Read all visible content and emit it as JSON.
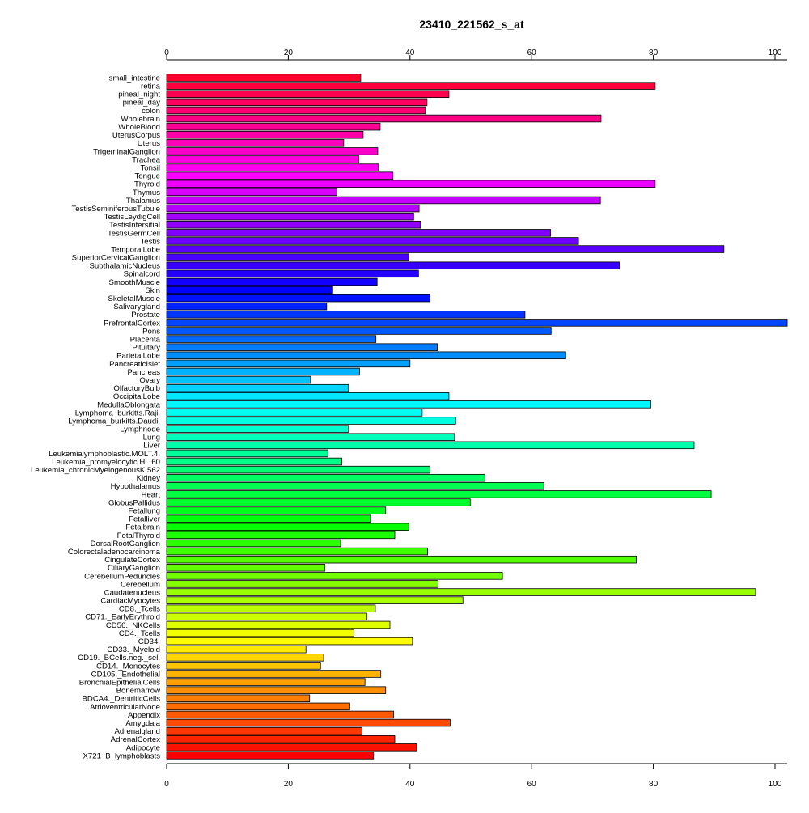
{
  "chart_data": {
    "type": "bar",
    "orientation": "horizontal",
    "title": "23410_221562_s_at",
    "xlabel": "",
    "ylabel": "",
    "xlim": [
      0,
      102
    ],
    "x_ticks": [
      0,
      20,
      40,
      60,
      80,
      100
    ],
    "grid": false,
    "legend": "none",
    "color_scheme": "rainbow",
    "categories": [
      "small_intestine",
      "retina",
      "pineal_night",
      "pineal_day",
      "colon",
      "Wholebrain",
      "WholeBlood",
      "UterusCorpus",
      "Uterus",
      "TrigeminalGanglion",
      "Trachea",
      "Tonsil",
      "Tongue",
      "Thyroid",
      "Thymus",
      "Thalamus",
      "TestisSeminiferousTubule",
      "TestisLeydigCell",
      "TestisIntersitial",
      "TestisGermCell",
      "Testis",
      "TemporalLobe",
      "SuperiorCervicalGanglion",
      "SubthalamicNucleus",
      "Spinalcord",
      "SmoothMuscle",
      "Skin",
      "SkeletalMuscle",
      "Salivarygland",
      "Prostate",
      "PrefrontalCortex",
      "Pons",
      "Placenta",
      "Pituitary",
      "ParietalLobe",
      "PancreaticIslet",
      "Pancreas",
      "Ovary",
      "OlfactoryBulb",
      "OccipitalLobe",
      "MedullaOblongata",
      "Lymphoma_burkitts.Raji.",
      "Lymphoma_burkitts.Daudi.",
      "Lymphnode",
      "Lung",
      "Liver",
      "Leukemialymphoblastic.MOLT.4.",
      "Leukemia_promyelocytic.HL.60",
      "Leukemia_chronicMyelogenousK.562",
      "Kidney",
      "Hypothalamus",
      "Heart",
      "GlobusPallidus",
      "Fetallung",
      "Fetalliver",
      "Fetalbrain",
      "FetalThyroid",
      "DorsalRootGanglion",
      "Colorectaladenocarcinoma",
      "CingulateCortex",
      "CiliaryGanglion",
      "CerebellumPeduncles",
      "Cerebellum",
      "Caudatenucleus",
      "CardiacMyocytes",
      "CD8._Tcells",
      "CD71._EarlyErythroid",
      "CD56._NKCells",
      "CD4._Tcells",
      "CD34.",
      "CD33._Myeloid",
      "CD19._BCells.neg._sel.",
      "CD14._Monocytes",
      "CD105._Endothelial",
      "BronchialEpithelialCells",
      "Bonemarrow",
      "BDCA4._DentriticCells",
      "AtrioventricularNode",
      "Appendix",
      "Amygdala",
      "Adrenalgland",
      "AdrenalCortex",
      "Adipocyte",
      "X721_B_lymphoblasts"
    ],
    "values": [
      31.9,
      80.3,
      46.4,
      42.8,
      42.5,
      71.4,
      35.1,
      32.3,
      29.1,
      34.7,
      31.6,
      34.8,
      37.2,
      80.3,
      28.0,
      71.3,
      41.5,
      40.6,
      41.7,
      63.1,
      67.7,
      91.6,
      39.8,
      74.4,
      41.4,
      34.6,
      27.3,
      43.3,
      26.3,
      58.9,
      102.0,
      63.2,
      34.4,
      44.5,
      65.6,
      40.0,
      31.7,
      23.6,
      29.9,
      46.4,
      79.6,
      42.0,
      47.5,
      29.9,
      47.3,
      86.7,
      26.5,
      28.8,
      43.3,
      52.3,
      62.0,
      89.5,
      49.9,
      36.0,
      33.5,
      39.8,
      37.5,
      28.6,
      42.9,
      77.2,
      26.0,
      55.2,
      44.6,
      96.8,
      48.7,
      34.3,
      32.9,
      36.7,
      30.8,
      40.4,
      22.9,
      25.8,
      25.3,
      35.2,
      32.6,
      36.0,
      23.5,
      30.1,
      37.3,
      46.6,
      32.1,
      37.5,
      41.1,
      34.0
    ]
  }
}
